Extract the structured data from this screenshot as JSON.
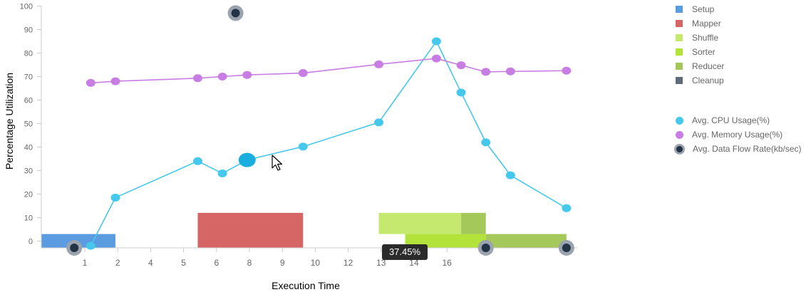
{
  "chart_data": {
    "type": "line",
    "ylabel": "Percentage Utilization",
    "xlabel": "Execution Time",
    "ylim": [
      0,
      100
    ],
    "yticks": [
      0,
      10,
      20,
      30,
      40,
      50,
      60,
      70,
      80,
      90,
      100
    ],
    "xticks": [
      "1",
      "2",
      "4",
      "5",
      "6",
      "8",
      "9",
      "10",
      "12",
      "13",
      "14",
      "16"
    ],
    "grid": false,
    "legend": "right",
    "phases": [
      {
        "name": "Setup",
        "color": "#5b9be0",
        "start": 0.0,
        "end": 2.25,
        "low": -3,
        "high": 3
      },
      {
        "name": "Mapper",
        "color": "#d66666",
        "start": 4.75,
        "end": 7.95,
        "low": -3,
        "high": 12
      },
      {
        "name": "Shuffle",
        "color": "#c5e86e",
        "start": 10.25,
        "end": 12.75,
        "low": 3,
        "high": 12
      },
      {
        "name": "Sorter",
        "color": "#b3e33b",
        "start": 11.05,
        "end": 13.5,
        "low": -3,
        "high": 3
      },
      {
        "name": "Reducer",
        "color": "#a4c95a",
        "start": 12.75,
        "end": 13.5,
        "low": 3,
        "high": 12
      },
      {
        "name": "Reducer",
        "color": "#a4c95a",
        "start": 13.5,
        "end": 15.95,
        "low": -3,
        "high": 3
      }
    ],
    "legend_phases": [
      {
        "name": "Setup",
        "color": "#5b9be0"
      },
      {
        "name": "Mapper",
        "color": "#d66666"
      },
      {
        "name": "Shuffle",
        "color": "#c5e86e"
      },
      {
        "name": "Sorter",
        "color": "#b3e33b"
      },
      {
        "name": "Reducer",
        "color": "#a4c95a"
      },
      {
        "name": "Cleanup",
        "color": "#5d6b7a"
      }
    ],
    "series": [
      {
        "name": "Avg. CPU Usage(%)",
        "color": "#46c8ec",
        "x": [
          1.5,
          2.25,
          4.75,
          5.5,
          6.25,
          7.95,
          10.25,
          12,
          12.75,
          13.5,
          14.25,
          15.95
        ],
        "values": [
          -2,
          18.5,
          34,
          28.8,
          34.5,
          40.2,
          50.5,
          85,
          63.2,
          42,
          28,
          14
        ]
      },
      {
        "name": "Avg. Memory Usage(%)",
        "color": "#c77de3",
        "x": [
          1.5,
          2.25,
          4.75,
          5.5,
          6.25,
          7.95,
          10.25,
          12,
          12.75,
          13.5,
          14.25,
          15.95
        ],
        "values": [
          67.3,
          68,
          69.3,
          70,
          70.7,
          71.5,
          75.2,
          77.7,
          74.8,
          72,
          72.2,
          72.5
        ]
      },
      {
        "name": "Avg. Data Flow Rate(kb/sec)",
        "color": "#243447",
        "x": [
          1.0,
          5.9,
          13.5,
          15.95
        ],
        "values": [
          -3,
          97,
          -3,
          -3
        ]
      }
    ],
    "highlight": {
      "series": 0,
      "index": 4
    },
    "tooltip": {
      "text": "37.45%",
      "x": 10.75
    }
  }
}
